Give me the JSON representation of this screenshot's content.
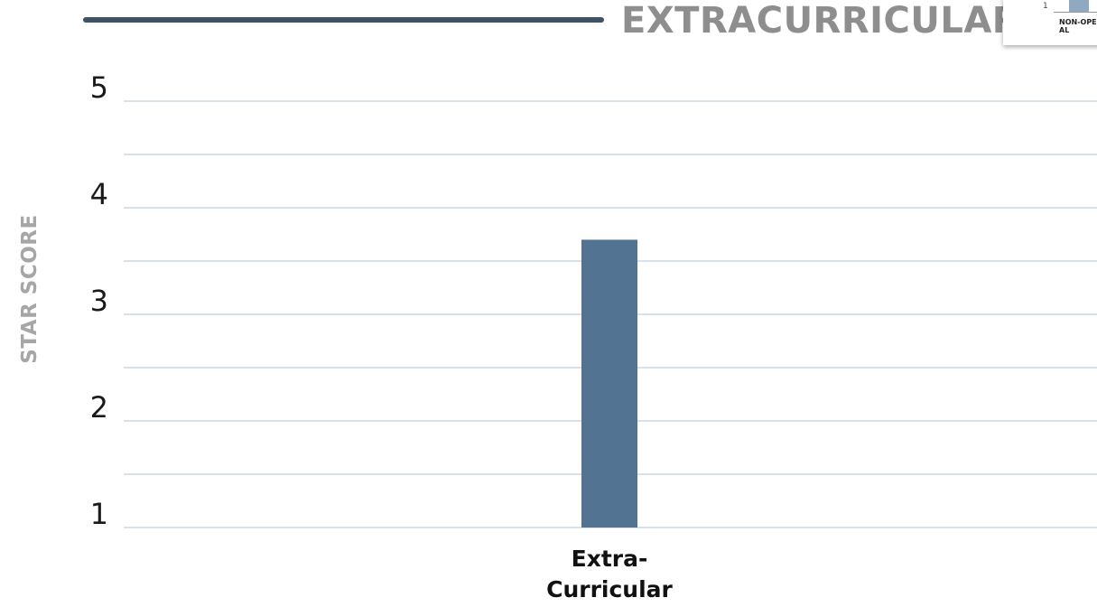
{
  "page": {
    "title": "EXTRACURRICULAR"
  },
  "thumbnail": {
    "axis_label": "1",
    "category_label": "NON-OPERATIONAL"
  },
  "colors": {
    "bar": "#527391",
    "grid": "#c9d7e2",
    "header_rule": "#3f5366",
    "title": "#8e8e8e"
  },
  "chart_data": {
    "type": "bar",
    "title": "",
    "xlabel": "",
    "ylabel": "STAR SCORE",
    "categories": [
      [
        "Extra-",
        "Curricular"
      ]
    ],
    "values": [
      3.7
    ],
    "ylim": [
      1,
      5
    ],
    "yticks": [
      1,
      2,
      3,
      4,
      5
    ],
    "grid": true,
    "legend": "none"
  }
}
